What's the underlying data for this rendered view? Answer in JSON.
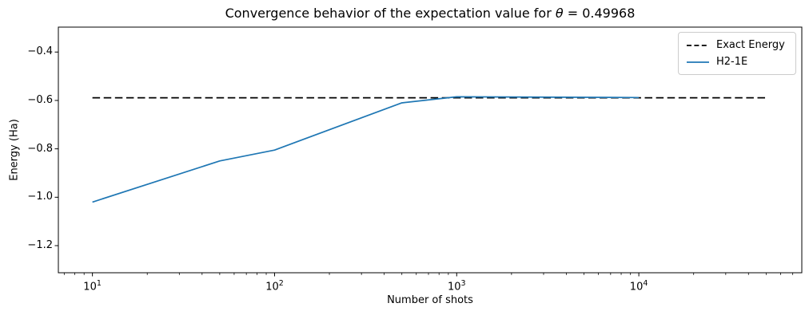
{
  "figure": {
    "title": {
      "prefix": "Convergence behavior of the expectation value for ",
      "theta": "θ",
      "suffix": " = 0.49968"
    }
  },
  "axes": {
    "xlabel": "Number of shots",
    "ylabel": "Energy (Ha)"
  },
  "legend": {
    "position": "upper right",
    "items": [
      {
        "label": "Exact Energy",
        "style": "dashed",
        "color": "#000000"
      },
      {
        "label": "H2-1E",
        "style": "solid",
        "color": "#1f77b4"
      }
    ]
  },
  "chart_data": {
    "type": "line",
    "title": "Convergence behavior of the expectation value for θ = 0.49968",
    "xlabel": "Number of shots",
    "ylabel": "Energy (Ha)",
    "xscale": "log",
    "yscale": "linear",
    "xlim": [
      6.5,
      78500
    ],
    "ylim": [
      -1.312,
      -0.297
    ],
    "grid": false,
    "legend_position": "upper right",
    "x_major_ticks": [
      10,
      100,
      1000,
      10000
    ],
    "x_tick_labels": [
      {
        "base": "10",
        "exp": "1"
      },
      {
        "base": "10",
        "exp": "2"
      },
      {
        "base": "10",
        "exp": "3"
      },
      {
        "base": "10",
        "exp": "4"
      }
    ],
    "y_ticks": [
      -0.4,
      -0.6,
      -0.8,
      -1.0,
      -1.2
    ],
    "exact_energy": -0.589,
    "series": [
      {
        "name": "Exact Energy",
        "style": "dashed",
        "color": "#000000",
        "x": [
          10,
          50000
        ],
        "y": [
          -0.589,
          -0.589
        ]
      },
      {
        "name": "H2-1E",
        "style": "solid",
        "color": "#1f77b4",
        "x": [
          10,
          50,
          100,
          500,
          1000,
          5000,
          10000
        ],
        "y": [
          -1.02,
          -0.85,
          -0.805,
          -0.61,
          -0.585,
          -0.587,
          -0.588
        ]
      }
    ]
  }
}
